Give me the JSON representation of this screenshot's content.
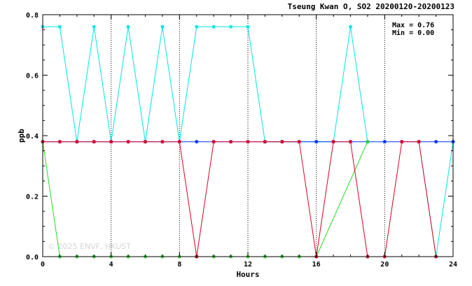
{
  "chart_data": {
    "type": "line",
    "title": "Tseung Kwan O, SO2 20200120-20200123",
    "xlabel": "Hours",
    "ylabel": "ppb",
    "xlim": [
      0,
      24
    ],
    "ylim": [
      0,
      0.8
    ],
    "xticks": [
      0,
      4,
      8,
      12,
      16,
      20,
      24
    ],
    "xtick_labels": [
      "0",
      "4",
      "8",
      "12",
      "16",
      "20",
      "24"
    ],
    "yticks": [
      0,
      0.2,
      0.4,
      0.6,
      0.8
    ],
    "ytick_labels": [
      "0.0",
      "0.2",
      "0.4",
      "0.6",
      "0.8"
    ],
    "grid": "dotted vertical at x ticks",
    "stats": {
      "max_label": "Max = 0.76",
      "min_label": "Min = 0.00"
    },
    "watermark": "© 2025 ENVF, HKUST",
    "series": [
      {
        "name": "cyan",
        "color": "#00e5e5",
        "x": [
          0,
          1,
          2,
          3,
          4,
          5,
          6,
          7,
          8,
          9,
          10,
          11,
          12,
          13,
          14,
          15,
          16,
          17,
          18,
          19
        ],
        "values": [
          0.76,
          0.76,
          0.38,
          0.76,
          0.38,
          0.76,
          0.38,
          0.76,
          0.38,
          0.76,
          0.76,
          0.76,
          0.76,
          0.38,
          0.38,
          0.38,
          0.38,
          0.38,
          0.76,
          0.38
        ]
      },
      {
        "name": "cyan-end",
        "color": "#00e5e5",
        "x": [
          22,
          23,
          24
        ],
        "values": [
          0.38,
          0.0,
          0.38
        ]
      },
      {
        "name": "blue",
        "color": "#0033ff",
        "x": [
          0,
          1,
          2,
          3,
          4,
          5,
          6,
          7,
          8,
          9,
          10,
          11,
          12,
          13,
          14,
          15,
          16,
          17,
          18,
          19,
          20,
          21,
          22,
          23,
          24
        ],
        "values": [
          0.38,
          0.38,
          0.38,
          0.38,
          0.38,
          0.38,
          0.38,
          0.38,
          0.38,
          0.38,
          0.38,
          0.38,
          0.38,
          0.38,
          0.38,
          0.38,
          0.38,
          0.38,
          0.38,
          0.38,
          0.38,
          0.38,
          0.38,
          0.38,
          0.38
        ]
      },
      {
        "name": "green",
        "color": "#22dd22",
        "x": [
          0,
          1,
          2,
          3,
          4,
          5,
          6,
          7,
          8,
          9,
          10,
          11,
          12,
          13,
          14,
          15,
          16,
          19
        ],
        "values": [
          0.38,
          0.0,
          0.0,
          0.0,
          0.0,
          0.0,
          0.0,
          0.0,
          0.0,
          0.0,
          0.0,
          0.0,
          0.0,
          0.0,
          0.0,
          0.0,
          0.0,
          0.38
        ]
      },
      {
        "name": "red",
        "color": "#dd0022",
        "x": [
          0,
          1,
          2,
          3,
          4,
          5,
          6,
          7,
          8,
          9,
          10,
          11,
          12,
          13,
          14,
          15,
          16,
          17,
          18,
          19,
          20,
          21,
          22,
          23
        ],
        "values": [
          0.38,
          0.38,
          0.38,
          0.38,
          0.38,
          0.38,
          0.38,
          0.38,
          0.38,
          0.0,
          0.38,
          0.38,
          0.38,
          0.38,
          0.38,
          0.38,
          0.0,
          0.38,
          0.38,
          0.0,
          0.0,
          0.38,
          0.38,
          0.0
        ]
      }
    ]
  }
}
